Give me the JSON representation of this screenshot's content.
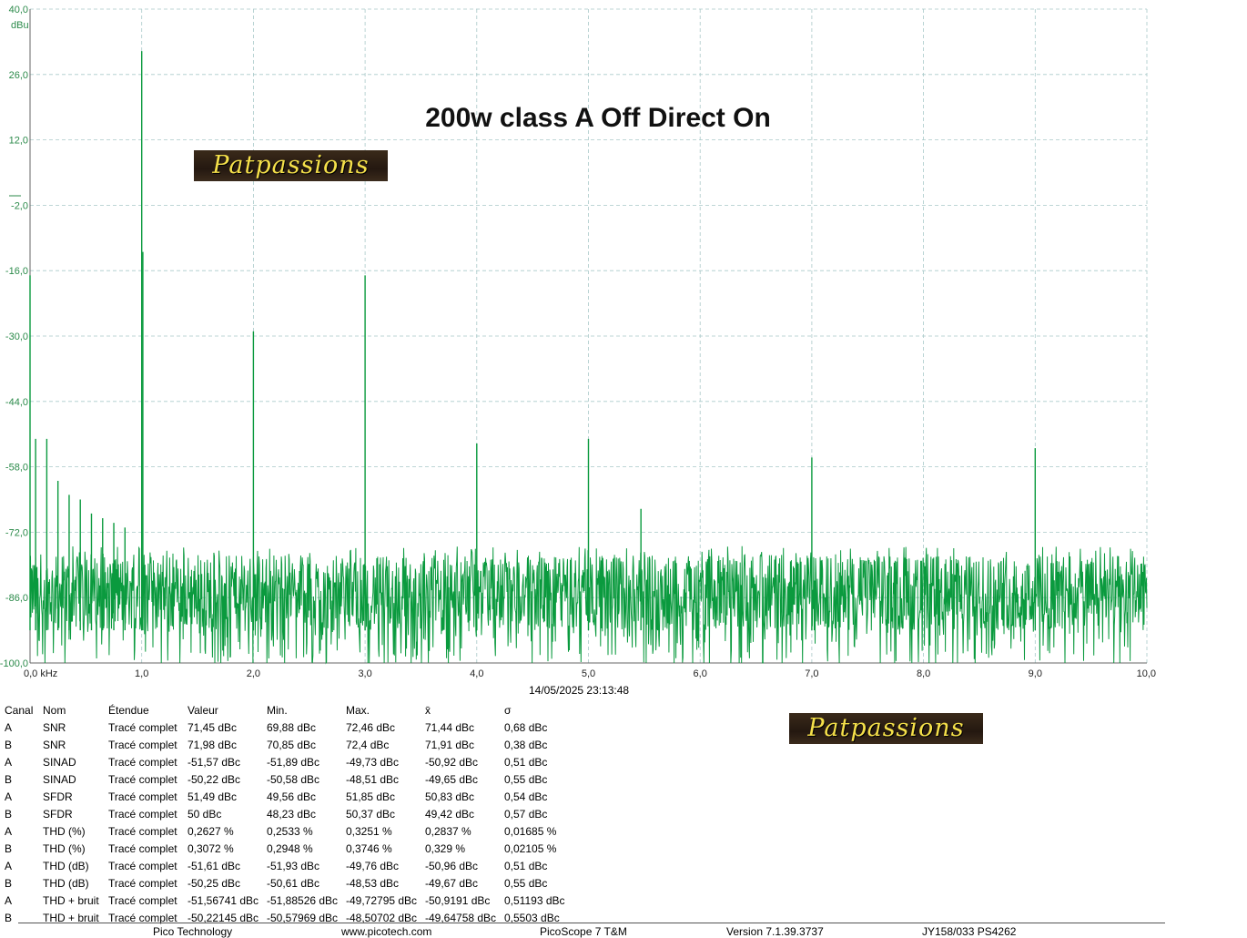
{
  "chart_data": {
    "type": "line",
    "title": "200w class A Off Direct On",
    "xlabel": "",
    "ylabel": "dBu",
    "xunit_suffix": "kHz",
    "xlim": [
      0,
      10
    ],
    "ylim": [
      -100,
      40
    ],
    "x_ticks": [
      "0,0 kHz",
      "1,0",
      "2,0",
      "3,0",
      "4,0",
      "5,0",
      "6,0",
      "7,0",
      "8,0",
      "9,0",
      "10,0"
    ],
    "y_ticks": [
      "40,0",
      "26,0",
      "12,0",
      "-2,0",
      "-16,0",
      "-30,0",
      "-44,0",
      "-58,0",
      "-72,0",
      "-86,0",
      "-100,0"
    ],
    "grid": true,
    "series_color": "#0a9a3e",
    "noise_floor_dbu": -85,
    "peaks": [
      {
        "x": 0.0,
        "y": -17
      },
      {
        "x": 0.05,
        "y": -52
      },
      {
        "x": 0.15,
        "y": -52
      },
      {
        "x": 0.25,
        "y": -61
      },
      {
        "x": 0.35,
        "y": -64
      },
      {
        "x": 0.45,
        "y": -65
      },
      {
        "x": 0.55,
        "y": -68
      },
      {
        "x": 0.65,
        "y": -69
      },
      {
        "x": 0.75,
        "y": -70
      },
      {
        "x": 0.85,
        "y": -71
      },
      {
        "x": 1.0,
        "y": 31
      },
      {
        "x": 1.01,
        "y": -12
      },
      {
        "x": 2.0,
        "y": -29
      },
      {
        "x": 3.0,
        "y": -17
      },
      {
        "x": 4.0,
        "y": -53
      },
      {
        "x": 5.0,
        "y": -52
      },
      {
        "x": 5.47,
        "y": -67
      },
      {
        "x": 7.0,
        "y": -56
      },
      {
        "x": 9.0,
        "y": -54
      }
    ]
  },
  "logo_text": "Patpassions",
  "timestamp": "14/05/2025 23:13:48",
  "table": {
    "headers": [
      "Canal",
      "Nom",
      "Étendue",
      "Valeur",
      "Min.",
      "Max.",
      "x̄",
      "σ"
    ],
    "rows": [
      [
        "A",
        "SNR",
        "Tracé complet",
        "71,45 dBc",
        "69,88 dBc",
        "72,46 dBc",
        "71,44 dBc",
        "0,68 dBc"
      ],
      [
        "B",
        "SNR",
        "Tracé complet",
        "71,98 dBc",
        "70,85 dBc",
        "72,4 dBc",
        "71,91 dBc",
        "0,38 dBc"
      ],
      [
        "A",
        "SINAD",
        "Tracé complet",
        "-51,57 dBc",
        "-51,89 dBc",
        "-49,73 dBc",
        "-50,92 dBc",
        "0,51 dBc"
      ],
      [
        "B",
        "SINAD",
        "Tracé complet",
        "-50,22 dBc",
        "-50,58 dBc",
        "-48,51 dBc",
        "-49,65 dBc",
        "0,55 dBc"
      ],
      [
        "A",
        "SFDR",
        "Tracé complet",
        "51,49 dBc",
        "49,56 dBc",
        "51,85 dBc",
        "50,83 dBc",
        "0,54 dBc"
      ],
      [
        "B",
        "SFDR",
        "Tracé complet",
        "50 dBc",
        "48,23 dBc",
        "50,37 dBc",
        "49,42 dBc",
        "0,57 dBc"
      ],
      [
        "A",
        "THD (%)",
        "Tracé complet",
        "0,2627 %",
        "0,2533 %",
        "0,3251 %",
        "0,2837 %",
        "0,01685 %"
      ],
      [
        "B",
        "THD (%)",
        "Tracé complet",
        "0,3072 %",
        "0,2948 %",
        "0,3746 %",
        "0,329 %",
        "0,02105 %"
      ],
      [
        "A",
        "THD (dB)",
        "Tracé complet",
        "-51,61 dBc",
        "-51,93 dBc",
        "-49,76 dBc",
        "-50,96 dBc",
        "0,51 dBc"
      ],
      [
        "B",
        "THD (dB)",
        "Tracé complet",
        "-50,25 dBc",
        "-50,61 dBc",
        "-48,53 dBc",
        "-49,67 dBc",
        "0,55 dBc"
      ],
      [
        "A",
        "THD + bruit",
        "Tracé complet",
        "-51,56741 dBc",
        "-51,88526 dBc",
        "-49,72795 dBc",
        "-50,9191 dBc",
        "0,51193 dBc"
      ],
      [
        "B",
        "THD + bruit",
        "Tracé complet",
        "-50,22145 dBc",
        "-50,57969 dBc",
        "-48,50702 dBc",
        "-49,64758 dBc",
        "0,5503 dBc"
      ]
    ]
  },
  "footer": {
    "company": "Pico Technology",
    "website": "www.picotech.com",
    "product": "PicoScope 7 T&M",
    "version": "Version 7.1.39.3737",
    "device": "JY158/033 PS4262"
  }
}
